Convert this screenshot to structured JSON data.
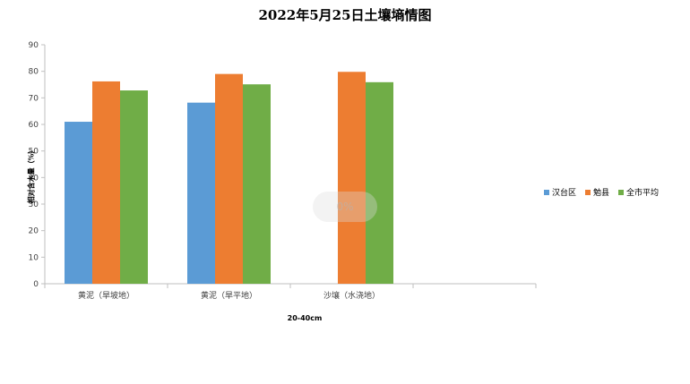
{
  "chart_data": {
    "type": "bar",
    "title": "2022年5月25日土壤墒情图",
    "xlabel": "20-40cm",
    "ylabel": "相对含水量（%）",
    "ylim": [
      0,
      90
    ],
    "yticks": [
      "0",
      "10",
      "20",
      "30",
      "40",
      "50",
      "60",
      "70",
      "80",
      "90"
    ],
    "categories": [
      "黄泥（旱坡地）",
      "黄泥（旱平地）",
      "沙壤（水浇地）",
      ""
    ],
    "series": [
      {
        "name": "汉台区",
        "color": "#5B9BD5",
        "values": [
          61,
          68.2,
          null,
          null
        ]
      },
      {
        "name": "勉县",
        "color": "#ED7D31",
        "values": [
          76.2,
          79,
          79.8,
          null
        ]
      },
      {
        "name": "全市平均",
        "color": "#70AD47",
        "values": [
          72.8,
          75.1,
          75.9,
          null
        ]
      }
    ],
    "legend_position": "right",
    "grid": false
  },
  "watermark_text": "0%"
}
